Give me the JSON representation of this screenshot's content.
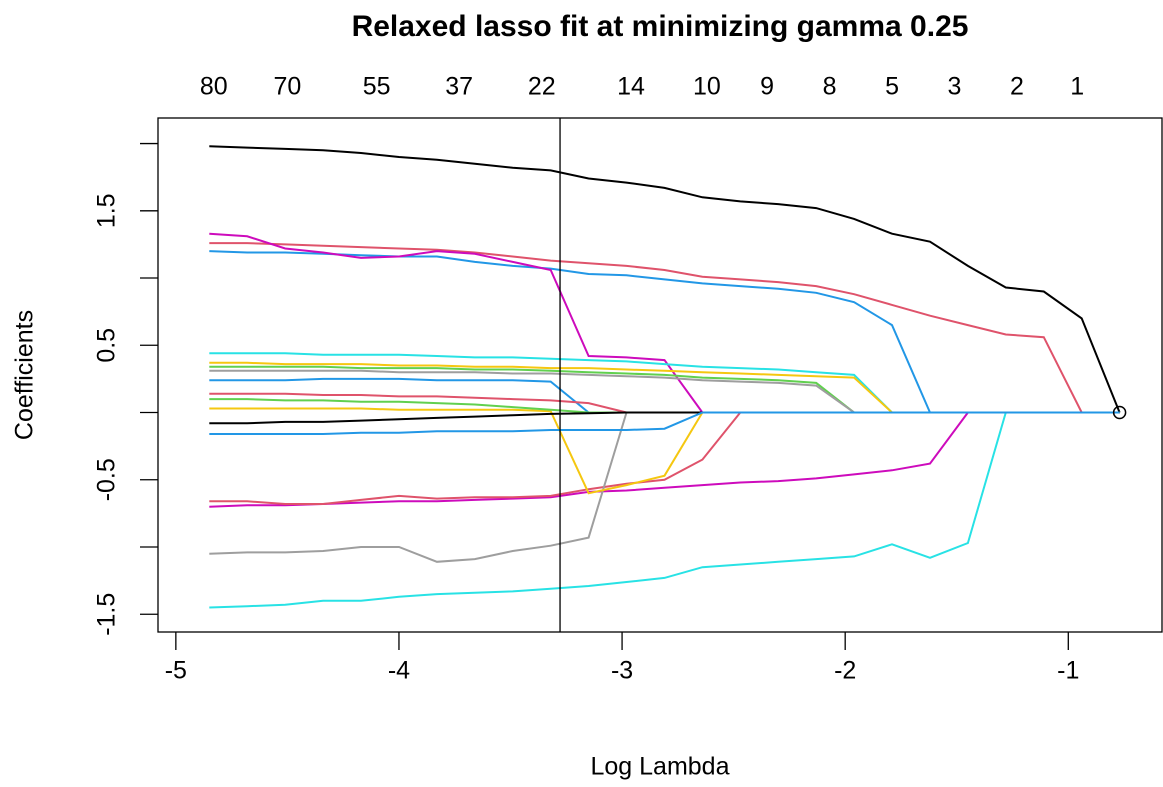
{
  "chart_data": {
    "type": "line",
    "title": "Relaxed lasso fit at minimizing gamma 0.25",
    "x_label": "Log Lambda",
    "y_label": "Coefficients",
    "xlim": [
      -5.08,
      -0.58
    ],
    "ylim": [
      -1.632,
      2.19
    ],
    "xticks": [
      -5,
      -4,
      -3,
      -2,
      -1
    ],
    "yticks": [
      -1.5,
      -0.5,
      0.5,
      1.5
    ],
    "y_unlabeled_ticks": [
      -1,
      0,
      1,
      2
    ],
    "top_ticks": [
      {
        "value": -4.83,
        "label": "80"
      },
      {
        "value": -4.5,
        "label": "70"
      },
      {
        "value": -4.1,
        "label": "55"
      },
      {
        "value": -3.73,
        "label": "37"
      },
      {
        "value": -3.36,
        "label": "22"
      },
      {
        "value": -2.96,
        "label": "14"
      },
      {
        "value": -2.62,
        "label": "10"
      },
      {
        "value": -2.35,
        "label": "9"
      },
      {
        "value": -2.07,
        "label": "8"
      },
      {
        "value": -1.79,
        "label": "5"
      },
      {
        "value": -1.51,
        "label": "3"
      },
      {
        "value": -1.23,
        "label": "2"
      },
      {
        "value": -0.96,
        "label": "1"
      }
    ],
    "vline": -3.278,
    "point": {
      "x": -0.77,
      "y": 0
    },
    "x": [
      -4.85,
      -4.68,
      -4.51,
      -4.34,
      -4.17,
      -4.0,
      -3.83,
      -3.66,
      -3.49,
      -3.32,
      -3.15,
      -2.98,
      -2.81,
      -2.64,
      -2.47,
      -2.3,
      -2.13,
      -1.96,
      -1.79,
      -1.62,
      -1.45,
      -1.28,
      -1.11,
      -0.94,
      -0.77
    ],
    "series": [
      {
        "color": "#000000",
        "values": [
          1.98,
          1.97,
          1.96,
          1.95,
          1.93,
          1.9,
          1.88,
          1.85,
          1.82,
          1.8,
          1.74,
          1.71,
          1.67,
          1.6,
          1.57,
          1.55,
          1.52,
          1.44,
          1.33,
          1.27,
          1.09,
          0.93,
          0.9,
          0.7,
          0
        ]
      },
      {
        "color": "#DF536B",
        "values": [
          1.26,
          1.26,
          1.25,
          1.24,
          1.23,
          1.22,
          1.21,
          1.19,
          1.16,
          1.13,
          1.11,
          1.09,
          1.06,
          1.01,
          0.99,
          0.97,
          0.94,
          0.88,
          0.8,
          0.72,
          0.65,
          0.58,
          0.56,
          0,
          0
        ]
      },
      {
        "color": "#2297E6",
        "values": [
          1.2,
          1.19,
          1.19,
          1.18,
          1.17,
          1.16,
          1.16,
          1.12,
          1.09,
          1.07,
          1.03,
          1.02,
          0.99,
          0.96,
          0.94,
          0.92,
          0.89,
          0.82,
          0.65,
          0,
          0,
          0,
          0,
          0,
          0
        ]
      },
      {
        "color": "#CD0BBC",
        "values": [
          1.33,
          1.31,
          1.22,
          1.19,
          1.15,
          1.16,
          1.2,
          1.18,
          1.12,
          1.06,
          0.42,
          0.41,
          0.39,
          0,
          0,
          0,
          0,
          0,
          0,
          0,
          0,
          0,
          0,
          0,
          0
        ]
      },
      {
        "color": "#CD0BBC",
        "values": [
          -0.7,
          -0.69,
          -0.69,
          -0.68,
          -0.67,
          -0.66,
          -0.66,
          -0.65,
          -0.64,
          -0.63,
          -0.59,
          -0.58,
          -0.56,
          -0.54,
          -0.52,
          -0.51,
          -0.49,
          -0.46,
          -0.43,
          -0.38,
          0,
          0,
          0,
          0,
          0
        ]
      },
      {
        "color": "#DF536B",
        "values": [
          -0.66,
          -0.66,
          -0.68,
          -0.68,
          -0.65,
          -0.62,
          -0.64,
          -0.63,
          -0.63,
          -0.62,
          -0.57,
          -0.53,
          -0.5,
          -0.35,
          0,
          0,
          0,
          0,
          0,
          0,
          0,
          0,
          0,
          0,
          0
        ]
      },
      {
        "color": "#9E9E9E",
        "values": [
          -1.05,
          -1.04,
          -1.04,
          -1.03,
          -1.0,
          -1.0,
          -1.11,
          -1.09,
          -1.03,
          -0.99,
          -0.93,
          0,
          0,
          0,
          0,
          0,
          0,
          0,
          0,
          0,
          0,
          0,
          0,
          0,
          0
        ]
      },
      {
        "color": "#28E2E5",
        "values": [
          -1.45,
          -1.44,
          -1.43,
          -1.4,
          -1.4,
          -1.37,
          -1.35,
          -1.34,
          -1.33,
          -1.31,
          -1.29,
          -1.26,
          -1.23,
          -1.15,
          -1.13,
          -1.11,
          -1.09,
          -1.07,
          -0.98,
          -1.08,
          -0.97,
          0,
          0,
          0,
          0
        ]
      },
      {
        "color": "#28E2E5",
        "values": [
          0.44,
          0.44,
          0.44,
          0.43,
          0.43,
          0.43,
          0.42,
          0.41,
          0.41,
          0.4,
          0.39,
          0.38,
          0.36,
          0.34,
          0.33,
          0.32,
          0.3,
          0.28,
          0,
          0,
          0,
          0,
          0,
          0,
          0
        ]
      },
      {
        "color": "#F5C710",
        "values": [
          0.37,
          0.37,
          0.36,
          0.36,
          0.36,
          0.35,
          0.35,
          0.34,
          0.34,
          0.33,
          0.33,
          0.32,
          0.31,
          0.3,
          0.29,
          0.28,
          0.27,
          0.26,
          0,
          0,
          0,
          0,
          0,
          0,
          0
        ]
      },
      {
        "color": "#F5C710",
        "values": [
          0.03,
          0.03,
          0.03,
          0.03,
          0.03,
          0.02,
          0.02,
          0.02,
          0.02,
          0.01,
          -0.6,
          -0.54,
          -0.47,
          0,
          0,
          0,
          0,
          0,
          0,
          0,
          0,
          0,
          0,
          0,
          0
        ]
      },
      {
        "color": "#61D04F",
        "values": [
          0.34,
          0.34,
          0.34,
          0.34,
          0.33,
          0.33,
          0.33,
          0.32,
          0.32,
          0.31,
          0.3,
          0.29,
          0.28,
          0.26,
          0.25,
          0.24,
          0.22,
          0,
          0,
          0,
          0,
          0,
          0,
          0,
          0
        ]
      },
      {
        "color": "#9E9E9E",
        "values": [
          0.31,
          0.31,
          0.31,
          0.31,
          0.31,
          0.3,
          0.3,
          0.3,
          0.29,
          0.29,
          0.28,
          0.27,
          0.26,
          0.24,
          0.23,
          0.22,
          0.2,
          0,
          0,
          0,
          0,
          0,
          0,
          0,
          0
        ]
      },
      {
        "color": "#2297E6",
        "values": [
          0.24,
          0.24,
          0.24,
          0.25,
          0.25,
          0.25,
          0.24,
          0.24,
          0.24,
          0.23,
          0,
          0,
          0,
          0,
          0,
          0,
          0,
          0,
          0,
          0,
          0,
          0,
          0,
          0,
          0
        ]
      },
      {
        "color": "#61D04F",
        "values": [
          0.1,
          0.1,
          0.09,
          0.09,
          0.08,
          0.08,
          0.07,
          0.06,
          0.04,
          0.02,
          0,
          0,
          0,
          0,
          0,
          0,
          0,
          0,
          0,
          0,
          0,
          0,
          0,
          0,
          0
        ]
      },
      {
        "color": "#DF536B",
        "values": [
          0.14,
          0.14,
          0.14,
          0.13,
          0.13,
          0.12,
          0.12,
          0.11,
          0.1,
          0.09,
          0.07,
          0,
          0,
          0,
          0,
          0,
          0,
          0,
          0,
          0,
          0,
          0,
          0,
          0,
          0
        ]
      },
      {
        "color": "#000000",
        "values": [
          -0.08,
          -0.08,
          -0.07,
          -0.07,
          -0.06,
          -0.05,
          -0.04,
          -0.03,
          -0.02,
          -0.01,
          -0.005,
          0,
          0,
          0,
          0,
          0,
          0,
          0,
          0,
          0,
          0,
          0,
          0,
          0,
          0
        ]
      },
      {
        "color": "#2297E6",
        "values": [
          -0.16,
          -0.16,
          -0.16,
          -0.16,
          -0.15,
          -0.15,
          -0.14,
          -0.14,
          -0.14,
          -0.13,
          -0.13,
          -0.13,
          -0.12,
          0,
          0,
          0,
          0,
          0,
          0,
          0,
          0,
          0,
          0,
          0,
          0
        ]
      }
    ]
  }
}
